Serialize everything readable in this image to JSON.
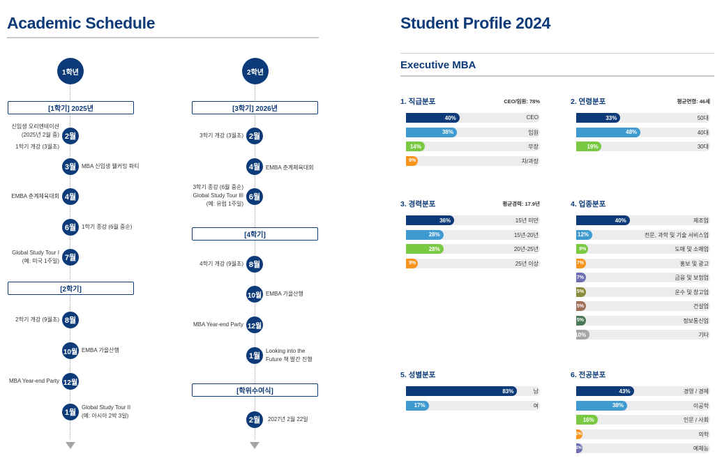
{
  "schedule": {
    "title": "Academic Schedule",
    "col1": {
      "head": "1학년",
      "sem1": "[1학기] 2025년",
      "sem2": "[2학기]",
      "e1": "신입생 오리엔테이션",
      "e1b": "(2025년 2월 중)",
      "e1c": "1학기 개강 (3월초)",
      "m1": "2월",
      "m2": "3월",
      "e2": "MBA 신입생 웰커밍 파티",
      "m3": "4월",
      "e3": "EMBA 춘계체육대회",
      "m4": "6월",
      "e4": "1학기 종강 (6월 중순)",
      "m5": "7월",
      "e5": "Global Study Tour I",
      "e5b": "(예: 미국 1주일)",
      "m6": "8월",
      "e6": "2학기 개강 (9월초)",
      "m7": "10월",
      "e7": "EMBA 가을산행",
      "m8": "12월",
      "e8": "MBA Year-end Party",
      "m9": "1월",
      "e9": "Global Study Tour II",
      "e9b": "(예: 아시아 2박 3일)"
    },
    "col2": {
      "head": "2학년",
      "sem3": "[3학기] 2026년",
      "sem4": "[4학기]",
      "sem5": "[학위수여식]",
      "m1": "2월",
      "e1": "3학기 개강 (3월초)",
      "m2": "4월",
      "e2": "EMBA 춘계체육대회",
      "m3": "6월",
      "e3": "3학기 종강 (6월 중순)",
      "e3b": "Global Study Tour III",
      "e3c": "(예: 유럽 1주일)",
      "m4": "8월",
      "e4": "4학기 개강 (9월초)",
      "m5": "10월",
      "e5": "EMBA 가을산행",
      "m6": "12월",
      "e6": "MBA Year-end Party",
      "m7": "1월",
      "e7": "Looking into the",
      "e7b": "Future 책 발간 진행",
      "m8": "2월",
      "e8": "2027년 2월 22일"
    }
  },
  "profile": {
    "title": "Student Profile 2024",
    "subtitle": "Executive MBA",
    "blocks": [
      {
        "title": "1. 직급분포",
        "stat": "CEO/임원: 78%",
        "rows": [
          {
            "pct": "40%",
            "value": 40,
            "label": "CEO",
            "color": "c-navy"
          },
          {
            "pct": "38%",
            "value": 38,
            "label": "임원",
            "color": "c-blue"
          },
          {
            "pct": "14%",
            "value": 14,
            "label": "부장",
            "color": "c-green"
          },
          {
            "pct": "9%",
            "value": 9,
            "label": "차/과장",
            "color": "c-orange"
          }
        ]
      },
      {
        "title": "2. 연령분포",
        "stat": "평균연령: 46세",
        "rows": [
          {
            "pct": "33%",
            "value": 33,
            "label": "50대",
            "color": "c-navy"
          },
          {
            "pct": "48%",
            "value": 48,
            "label": "40대",
            "color": "c-blue"
          },
          {
            "pct": "19%",
            "value": 19,
            "label": "30대",
            "color": "c-green"
          }
        ]
      },
      {
        "title": "3. 경력분포",
        "stat": "평균경력: 17.9년",
        "rows": [
          {
            "pct": "36%",
            "value": 36,
            "label": "15년 미만",
            "color": "c-navy"
          },
          {
            "pct": "28%",
            "value": 28,
            "label": "15년-20년",
            "color": "c-blue"
          },
          {
            "pct": "28%",
            "value": 28,
            "label": "20년-25년",
            "color": "c-green"
          },
          {
            "pct": "9%",
            "value": 9,
            "label": "25년 이상",
            "color": "c-orange"
          }
        ]
      },
      {
        "title": "4. 업종분포",
        "stat": "",
        "rows": [
          {
            "pct": "40%",
            "value": 40,
            "label": "제조업",
            "color": "c-navy"
          },
          {
            "pct": "12%",
            "value": 12,
            "label": "전문, 과학 및 기술 서비스업",
            "color": "c-blue"
          },
          {
            "pct": "9%",
            "value": 9,
            "label": "도매 및 소매업",
            "color": "c-green"
          },
          {
            "pct": "7%",
            "value": 7,
            "label": "홍보 및 광고",
            "color": "c-orange"
          },
          {
            "pct": "7%",
            "value": 7,
            "label": "금융 및 보험업",
            "color": "c-purple"
          },
          {
            "pct": "5%",
            "value": 5,
            "label": "운수 및 창고업",
            "color": "c-olive"
          },
          {
            "pct": "5%",
            "value": 5,
            "label": "건설업",
            "color": "c-brown"
          },
          {
            "pct": "5%",
            "value": 5,
            "label": "정보통신업",
            "color": "c-dkgreen"
          },
          {
            "pct": "10%",
            "value": 10,
            "label": "기타",
            "color": "c-gray"
          }
        ]
      },
      {
        "title": "5. 성별분포",
        "stat": "",
        "rows": [
          {
            "pct": "83%",
            "value": 83,
            "label": "남",
            "color": "c-navy"
          },
          {
            "pct": "17%",
            "value": 17,
            "label": "여",
            "color": "c-blue"
          }
        ]
      },
      {
        "title": "6. 전공분포",
        "stat": "",
        "rows": [
          {
            "pct": "43%",
            "value": 43,
            "label": "경영 / 경제",
            "color": "c-navy"
          },
          {
            "pct": "38%",
            "value": 38,
            "label": "이공학",
            "color": "c-blue"
          },
          {
            "pct": "16%",
            "value": 16,
            "label": "인문 / 사회",
            "color": "c-green"
          },
          {
            "pct": "2%",
            "value": 2,
            "label": "의학",
            "color": "c-orange"
          },
          {
            "pct": "2%",
            "value": 2,
            "label": "예체능",
            "color": "c-purple"
          }
        ]
      }
    ]
  }
}
